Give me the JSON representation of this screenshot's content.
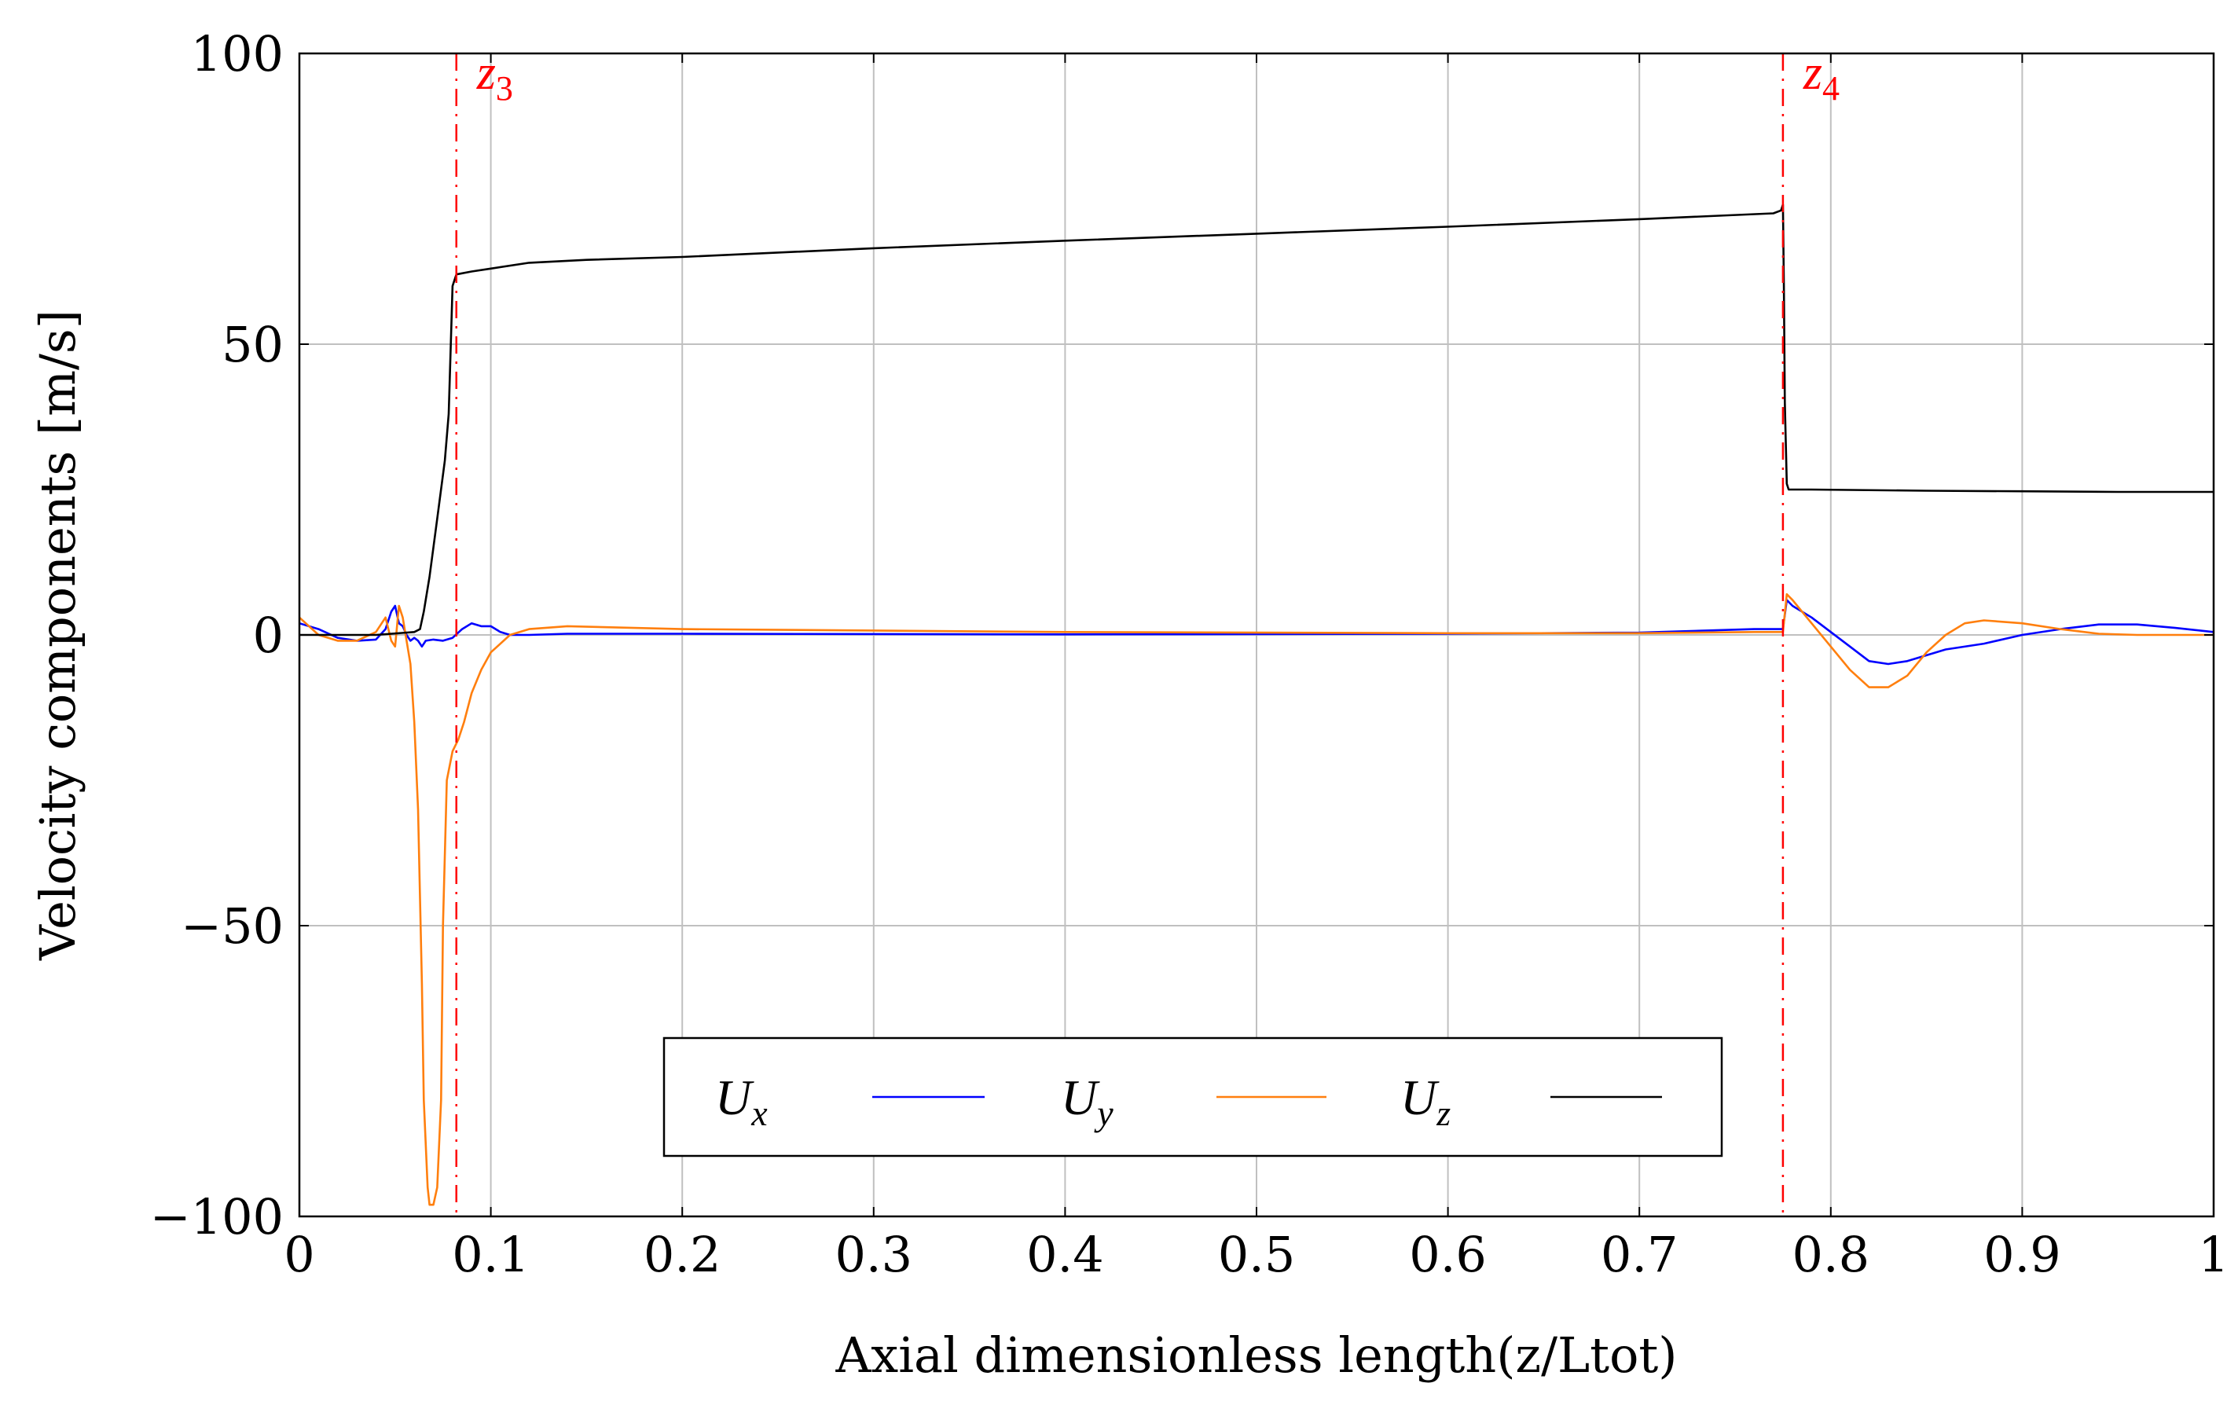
{
  "chart_data": {
    "type": "line",
    "title": "",
    "xlabel": "Axial dimensionless length(z/Ltot)",
    "ylabel": "Velocity components [m/s]",
    "xlim": [
      0,
      1
    ],
    "ylim": [
      -100,
      100
    ],
    "xticks": [
      0,
      0.1,
      0.2,
      0.3,
      0.4,
      0.5,
      0.6,
      0.7,
      0.8,
      0.9,
      1
    ],
    "xtick_labels": [
      "0",
      "0.1",
      "0.2",
      "0.3",
      "0.4",
      "0.5",
      "0.6",
      "0.7",
      "0.8",
      "0.9",
      "1"
    ],
    "yticks": [
      -100,
      -50,
      0,
      50,
      100
    ],
    "ytick_labels": [
      "−100",
      "−50",
      "0",
      "50",
      "100"
    ],
    "grid": true,
    "legend_position": "bottom-center",
    "markers": [
      {
        "name": "z",
        "sub": "3",
        "x": 0.082,
        "color": "#ff0000"
      },
      {
        "name": "z",
        "sub": "4",
        "x": 0.775,
        "color": "#ff0000"
      }
    ],
    "series": [
      {
        "name": "U",
        "sub": "x",
        "color": "#0000ff",
        "points": [
          [
            0,
            2
          ],
          [
            0.01,
            1
          ],
          [
            0.02,
            -0.5
          ],
          [
            0.03,
            -1
          ],
          [
            0.04,
            -0.8
          ],
          [
            0.045,
            1
          ],
          [
            0.048,
            4
          ],
          [
            0.05,
            5
          ],
          [
            0.052,
            2
          ],
          [
            0.054,
            1.5
          ],
          [
            0.056,
            0
          ],
          [
            0.058,
            -1
          ],
          [
            0.06,
            -0.5
          ],
          [
            0.062,
            -1
          ],
          [
            0.064,
            -2
          ],
          [
            0.066,
            -1
          ],
          [
            0.07,
            -0.8
          ],
          [
            0.075,
            -1
          ],
          [
            0.08,
            -0.5
          ],
          [
            0.085,
            1
          ],
          [
            0.09,
            2
          ],
          [
            0.095,
            1.5
          ],
          [
            0.1,
            1.5
          ],
          [
            0.105,
            0.5
          ],
          [
            0.11,
            0
          ],
          [
            0.12,
            0
          ],
          [
            0.14,
            0.2
          ],
          [
            0.2,
            0.2
          ],
          [
            0.4,
            0.1
          ],
          [
            0.6,
            0.2
          ],
          [
            0.7,
            0.4
          ],
          [
            0.76,
            1
          ],
          [
            0.775,
            1
          ],
          [
            0.777,
            6
          ],
          [
            0.78,
            5
          ],
          [
            0.79,
            3
          ],
          [
            0.8,
            0.5
          ],
          [
            0.81,
            -2
          ],
          [
            0.82,
            -4.5
          ],
          [
            0.83,
            -5
          ],
          [
            0.84,
            -4.5
          ],
          [
            0.85,
            -3.5
          ],
          [
            0.86,
            -2.5
          ],
          [
            0.88,
            -1.5
          ],
          [
            0.9,
            0
          ],
          [
            0.92,
            1
          ],
          [
            0.94,
            1.8
          ],
          [
            0.96,
            1.8
          ],
          [
            0.98,
            1.2
          ],
          [
            1,
            0.5
          ]
        ]
      },
      {
        "name": "U",
        "sub": "y",
        "color": "#ff7f0e",
        "points": [
          [
            0,
            3
          ],
          [
            0.01,
            0
          ],
          [
            0.02,
            -1
          ],
          [
            0.03,
            -1
          ],
          [
            0.04,
            0.5
          ],
          [
            0.045,
            3
          ],
          [
            0.048,
            -1
          ],
          [
            0.05,
            -2
          ],
          [
            0.052,
            5
          ],
          [
            0.054,
            3
          ],
          [
            0.056,
            -1
          ],
          [
            0.058,
            -5
          ],
          [
            0.06,
            -15
          ],
          [
            0.062,
            -30
          ],
          [
            0.064,
            -60
          ],
          [
            0.065,
            -80
          ],
          [
            0.067,
            -95
          ],
          [
            0.068,
            -98
          ],
          [
            0.07,
            -98
          ],
          [
            0.072,
            -95
          ],
          [
            0.074,
            -80
          ],
          [
            0.075,
            -50
          ],
          [
            0.077,
            -25
          ],
          [
            0.08,
            -20
          ],
          [
            0.083,
            -18
          ],
          [
            0.086,
            -15
          ],
          [
            0.09,
            -10
          ],
          [
            0.095,
            -6
          ],
          [
            0.1,
            -3
          ],
          [
            0.11,
            0
          ],
          [
            0.12,
            1
          ],
          [
            0.14,
            1.5
          ],
          [
            0.2,
            1
          ],
          [
            0.4,
            0.5
          ],
          [
            0.6,
            0.3
          ],
          [
            0.7,
            0.3
          ],
          [
            0.76,
            0.5
          ],
          [
            0.775,
            0.5
          ],
          [
            0.777,
            7
          ],
          [
            0.78,
            6
          ],
          [
            0.79,
            2
          ],
          [
            0.8,
            -2
          ],
          [
            0.81,
            -6
          ],
          [
            0.82,
            -9
          ],
          [
            0.83,
            -9
          ],
          [
            0.84,
            -7
          ],
          [
            0.85,
            -3
          ],
          [
            0.86,
            0
          ],
          [
            0.87,
            2
          ],
          [
            0.88,
            2.5
          ],
          [
            0.9,
            2
          ],
          [
            0.92,
            1
          ],
          [
            0.94,
            0.2
          ],
          [
            0.96,
            0
          ],
          [
            1,
            0
          ]
        ]
      },
      {
        "name": "U",
        "sub": "z",
        "color": "#000000",
        "points": [
          [
            0,
            0
          ],
          [
            0.04,
            0
          ],
          [
            0.06,
            0.5
          ],
          [
            0.063,
            1
          ],
          [
            0.065,
            4
          ],
          [
            0.068,
            10
          ],
          [
            0.072,
            20
          ],
          [
            0.076,
            30
          ],
          [
            0.078,
            38
          ],
          [
            0.08,
            60
          ],
          [
            0.081,
            61
          ],
          [
            0.082,
            62
          ],
          [
            0.09,
            62.5
          ],
          [
            0.1,
            63
          ],
          [
            0.12,
            64
          ],
          [
            0.15,
            64.5
          ],
          [
            0.2,
            65
          ],
          [
            0.3,
            66.5
          ],
          [
            0.4,
            67.8
          ],
          [
            0.5,
            69
          ],
          [
            0.6,
            70.2
          ],
          [
            0.7,
            71.5
          ],
          [
            0.77,
            72.5
          ],
          [
            0.774,
            73
          ],
          [
            0.775,
            74
          ],
          [
            0.7755,
            60
          ],
          [
            0.776,
            40
          ],
          [
            0.777,
            26
          ],
          [
            0.778,
            25
          ],
          [
            0.79,
            25
          ],
          [
            0.85,
            24.8
          ],
          [
            0.9,
            24.7
          ],
          [
            0.95,
            24.6
          ],
          [
            1,
            24.6
          ]
        ]
      }
    ]
  }
}
